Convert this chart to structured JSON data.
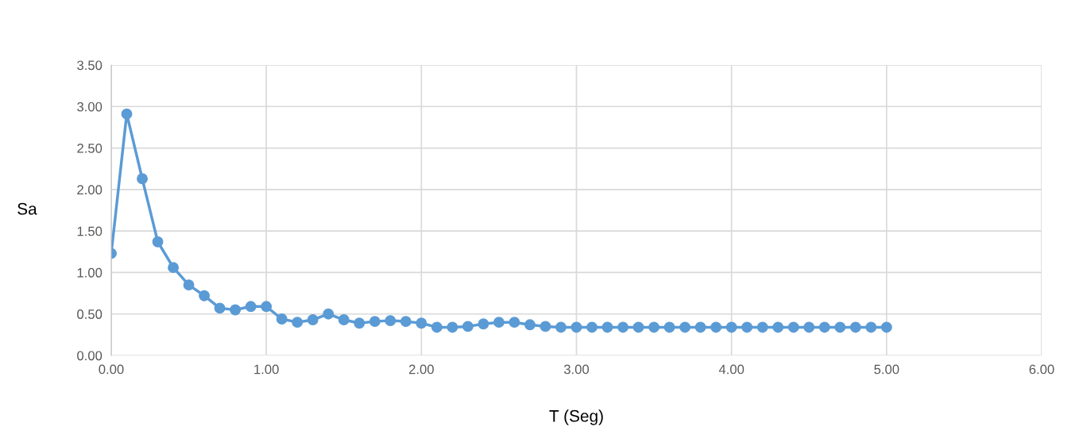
{
  "chart_data": {
    "type": "line",
    "xlabel": "T (Seg)",
    "ylabel": "Sa",
    "x": [
      0,
      0.1,
      0.2,
      0.3,
      0.4,
      0.5,
      0.6,
      0.7,
      0.8,
      0.9,
      1.0,
      1.1,
      1.2,
      1.3,
      1.4,
      1.5,
      1.6,
      1.7,
      1.8,
      1.9,
      2.0,
      2.1,
      2.2,
      2.3,
      2.4,
      2.5,
      2.6,
      2.7,
      2.8,
      2.9,
      3.0,
      3.1,
      3.2,
      3.3,
      3.4,
      3.5,
      3.6,
      3.7,
      3.8,
      3.9,
      4.0,
      4.1,
      4.2,
      4.3,
      4.4,
      4.5,
      4.6,
      4.7,
      4.8,
      4.9,
      5.0
    ],
    "series": [
      {
        "color": "#5b9bd5",
        "values": [
          1.23,
          2.91,
          2.13,
          1.37,
          1.06,
          0.85,
          0.72,
          0.57,
          0.55,
          0.59,
          0.59,
          0.44,
          0.4,
          0.43,
          0.5,
          0.43,
          0.39,
          0.41,
          0.42,
          0.41,
          0.39,
          0.34,
          0.34,
          0.35,
          0.38,
          0.4,
          0.4,
          0.37,
          0.35,
          0.34,
          0.34,
          0.34,
          0.34,
          0.34,
          0.34,
          0.34,
          0.34,
          0.34,
          0.34,
          0.34,
          0.34,
          0.34,
          0.34,
          0.34,
          0.34,
          0.34,
          0.34,
          0.34,
          0.34,
          0.34,
          0.34
        ]
      }
    ],
    "xlim": [
      0,
      6
    ],
    "xticks": [
      {
        "value": 0,
        "label": "0.00"
      },
      {
        "value": 1,
        "label": "1.00"
      },
      {
        "value": 2,
        "label": "2.00"
      },
      {
        "value": 3,
        "label": "3.00"
      },
      {
        "value": 4,
        "label": "4.00"
      },
      {
        "value": 5,
        "label": "5.00"
      },
      {
        "value": 6,
        "label": "6.00"
      }
    ],
    "ylim": [
      0,
      3.5
    ],
    "yticks": [
      {
        "value": 0,
        "label": "0.00"
      },
      {
        "value": 0.5,
        "label": "0.50"
      },
      {
        "value": 1,
        "label": "1.00"
      },
      {
        "value": 1.5,
        "label": "1.50"
      },
      {
        "value": 2,
        "label": "2.00"
      },
      {
        "value": 2.5,
        "label": "2.50"
      },
      {
        "value": 3,
        "label": "3.00"
      },
      {
        "value": 3.5,
        "label": "3.50"
      }
    ],
    "grid": true,
    "marker": "circle",
    "line_style": "solid"
  }
}
